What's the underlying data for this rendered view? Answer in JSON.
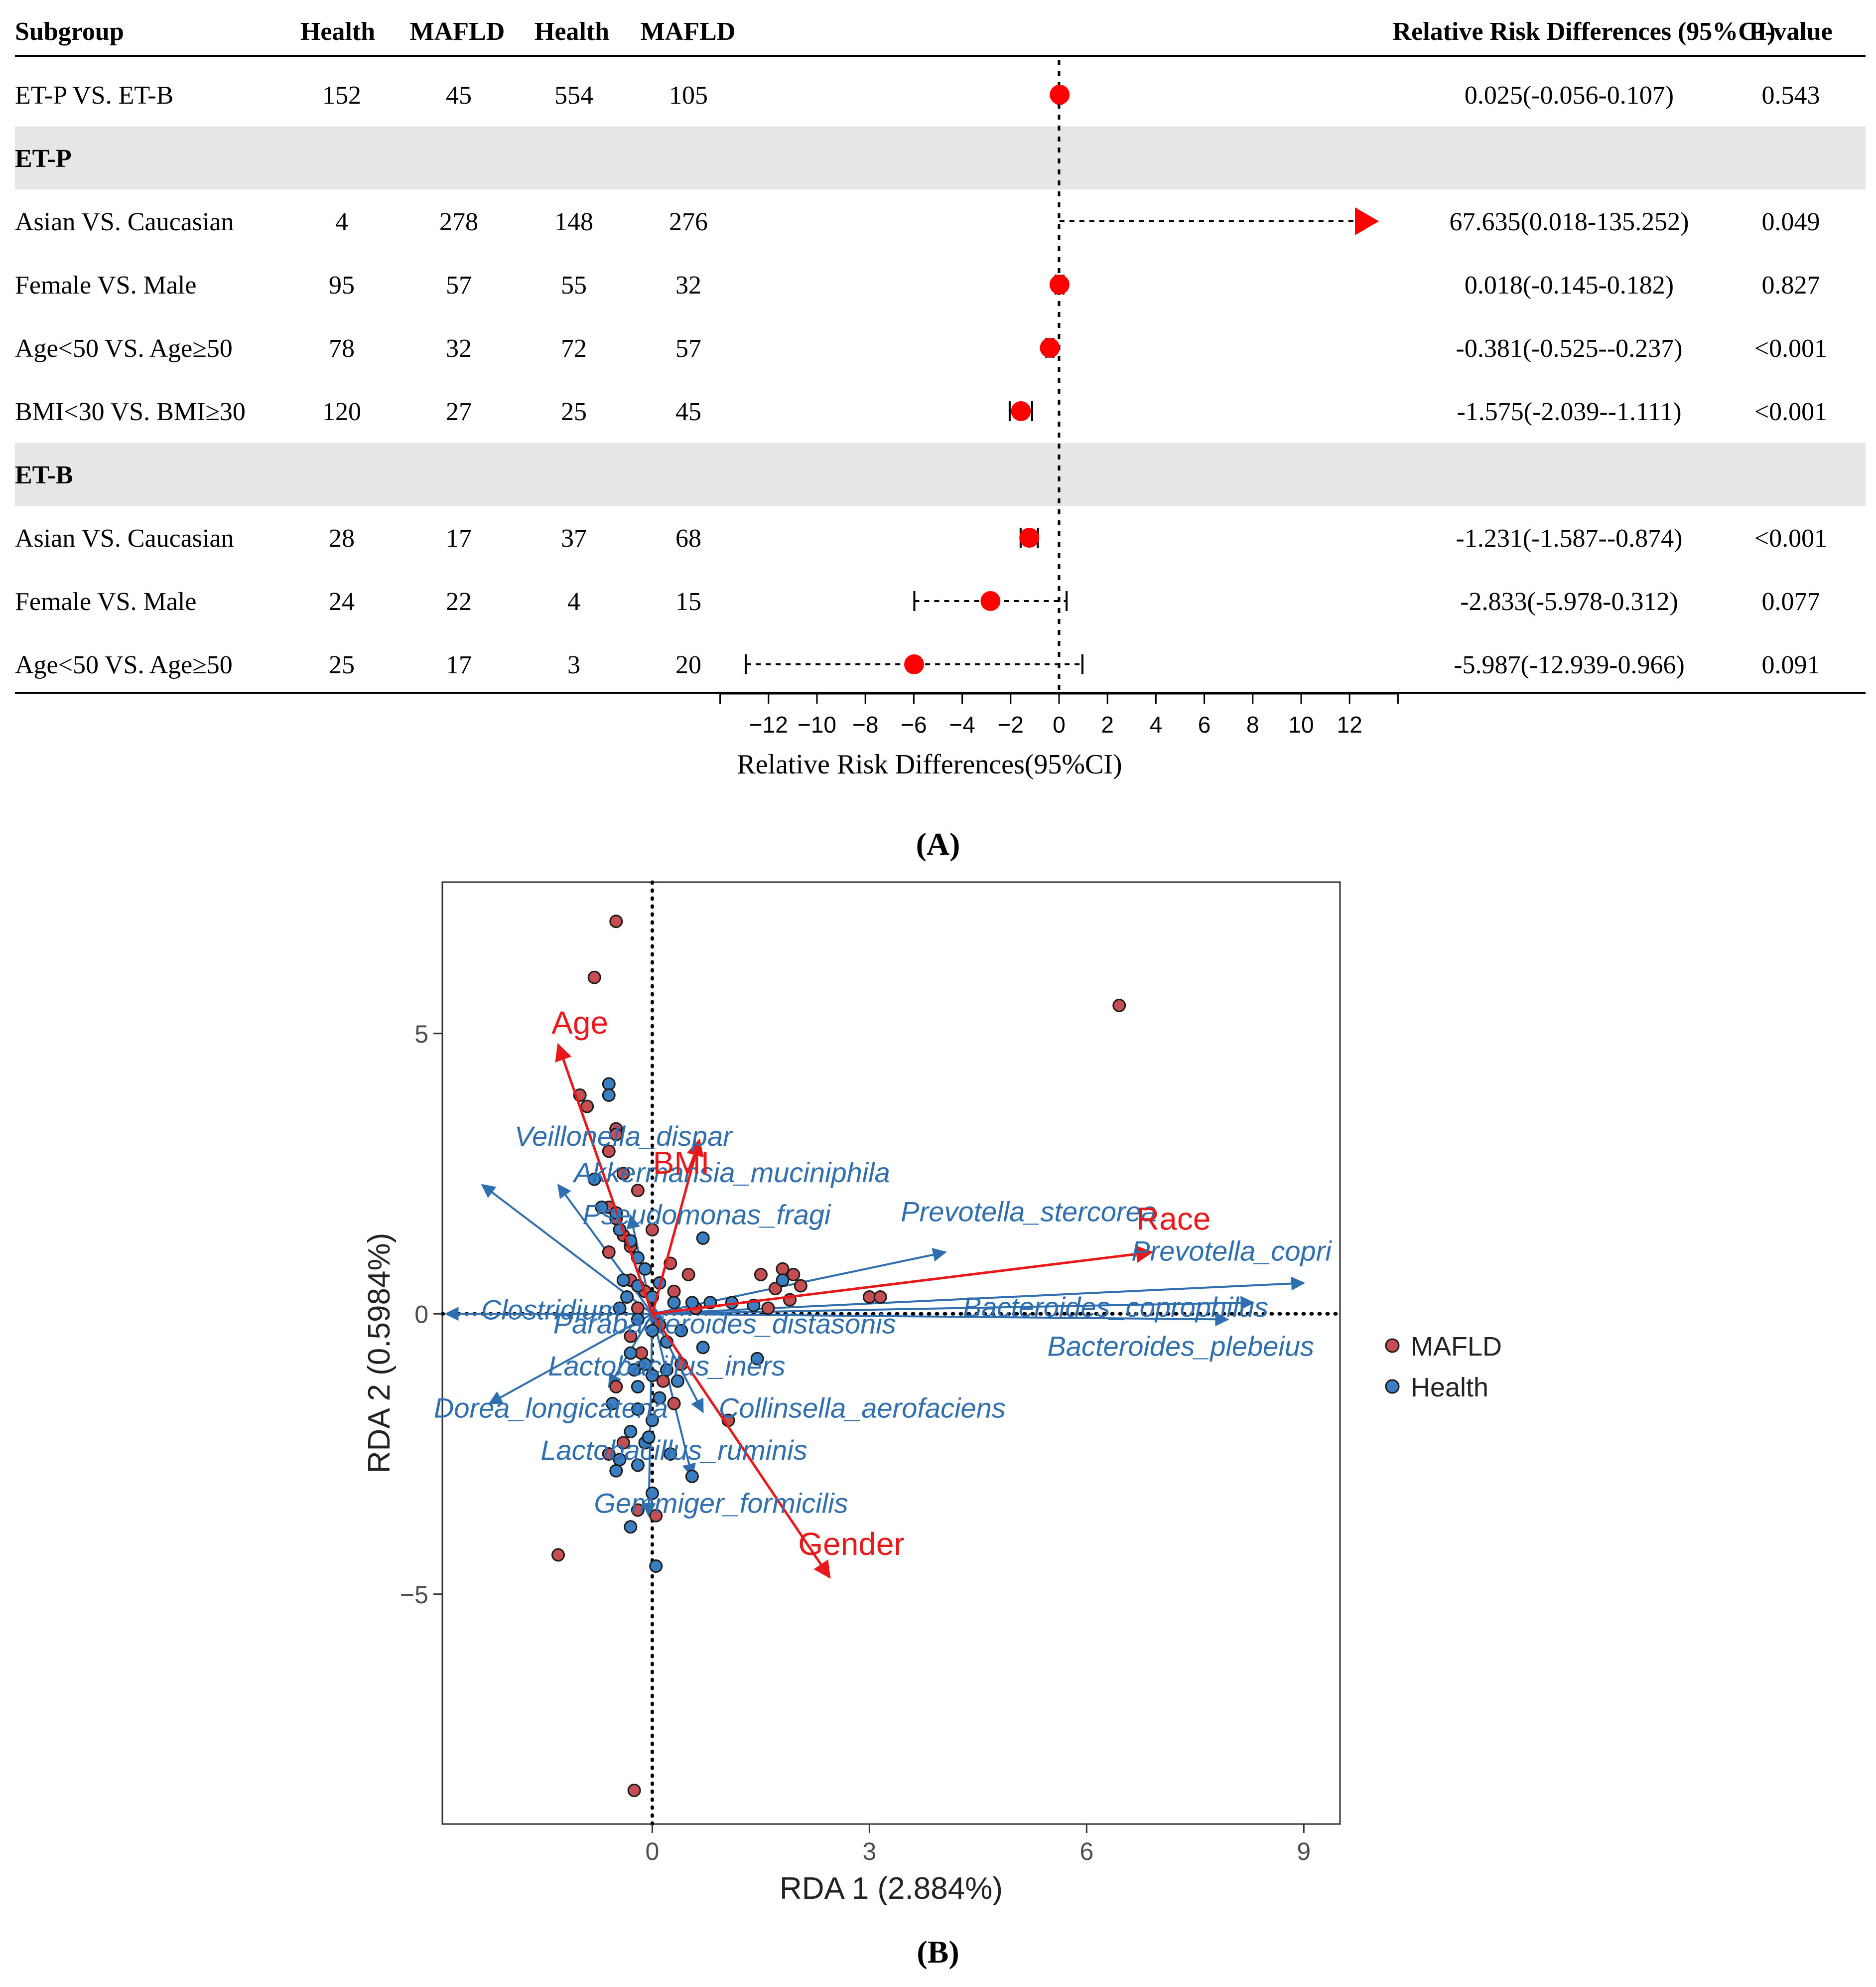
{
  "chart_data": [
    {
      "type": "forest",
      "panel_label": "(A)",
      "columns": [
        "Subgroup",
        "Health",
        "MAFLD",
        "Health",
        "MAFLD",
        "Relative Risk Differences (95%CI)",
        "P-value"
      ],
      "rows": [
        {
          "kind": "data",
          "label": "ET-P VS. ET-B",
          "c1": "152",
          "c2": "45",
          "c3": "554",
          "c4": "105",
          "est": 0.025,
          "lo": -0.056,
          "hi": 0.107,
          "ci_text": "0.025(-0.056-0.107)",
          "p": "0.543"
        },
        {
          "kind": "group",
          "label": "ET-P"
        },
        {
          "kind": "data",
          "label": "Asian VS. Caucasian",
          "c1": "4",
          "c2": "278",
          "c3": "148",
          "c4": "276",
          "est": 67.635,
          "lo": 0.018,
          "hi": 135.252,
          "ci_text": "67.635(0.018-135.252)",
          "p": "0.049",
          "offscale": true
        },
        {
          "kind": "data",
          "label": "Female VS. Male",
          "c1": "95",
          "c2": "57",
          "c3": "55",
          "c4": "32",
          "est": 0.018,
          "lo": -0.145,
          "hi": 0.182,
          "ci_text": "0.018(-0.145-0.182)",
          "p": "0.827"
        },
        {
          "kind": "data",
          "label": "Age<50 VS. Age≥50",
          "c1": "78",
          "c2": "32",
          "c3": "72",
          "c4": "57",
          "est": -0.381,
          "lo": -0.525,
          "hi": -0.237,
          "ci_text": "-0.381(-0.525--0.237)",
          "p": "<0.001"
        },
        {
          "kind": "data",
          "label": "BMI<30 VS. BMI≥30",
          "c1": "120",
          "c2": "27",
          "c3": "25",
          "c4": "45",
          "est": -1.575,
          "lo": -2.039,
          "hi": -1.111,
          "ci_text": "-1.575(-2.039--1.111)",
          "p": "<0.001"
        },
        {
          "kind": "group",
          "label": "ET-B"
        },
        {
          "kind": "data",
          "label": "Asian VS. Caucasian",
          "c1": "28",
          "c2": "17",
          "c3": "37",
          "c4": "68",
          "est": -1.231,
          "lo": -1.587,
          "hi": -0.874,
          "ci_text": "-1.231(-1.587--0.874)",
          "p": "<0.001"
        },
        {
          "kind": "data",
          "label": "Female VS. Male",
          "c1": "24",
          "c2": "22",
          "c3": "4",
          "c4": "15",
          "est": -2.833,
          "lo": -5.978,
          "hi": 0.312,
          "ci_text": "-2.833(-5.978-0.312)",
          "p": "0.077"
        },
        {
          "kind": "data",
          "label": "Age<50 VS. Age≥50",
          "c1": "25",
          "c2": "17",
          "c3": "3",
          "c4": "20",
          "est": -5.987,
          "lo": -12.939,
          "hi": 0.966,
          "ci_text": "-5.987(-12.939-0.966)",
          "p": "0.091"
        }
      ],
      "xlim": [
        -14,
        14
      ],
      "xticks": [
        -12,
        -10,
        -8,
        -6,
        -4,
        -2,
        0,
        2,
        4,
        6,
        8,
        10,
        12
      ],
      "xticklabels": [
        "−12",
        "−10",
        "−8",
        "−6",
        "−4",
        "−2",
        "0",
        "2",
        "4",
        "6",
        "8",
        "10",
        "12"
      ],
      "xlabel": "Relative Risk Differences(95%CI)",
      "colors": {
        "point": "#ff0000",
        "line": "#000000",
        "band": "#e6e6e6"
      }
    },
    {
      "type": "scatter",
      "subtype": "rda_biplot",
      "panel_label": "(B)",
      "xlabel": "RDA 1 (2.884%)",
      "ylabel": "RDA 2 (0.5984%)",
      "xlim": [
        -2.9,
        9.5
      ],
      "ylim": [
        -9.1,
        7.7
      ],
      "xticks": [
        0,
        3,
        6,
        9
      ],
      "xticklabels": [
        "0",
        "3",
        "6",
        "9"
      ],
      "yticks": [
        5,
        0,
        -5
      ],
      "yticklabels": [
        "5",
        "0",
        "−5"
      ],
      "legend": {
        "position": "right",
        "entries": [
          {
            "name": "MAFLD",
            "color": "#c44e52"
          },
          {
            "name": "Health",
            "color": "#3a7fc1"
          }
        ]
      },
      "env_arrows": [
        {
          "name": "Age",
          "x": -1.3,
          "y": 4.8,
          "lx": -1.0,
          "ly": 5.0
        },
        {
          "name": "BMI",
          "x": 0.65,
          "y": 3.1,
          "lx": 0.4,
          "ly": 2.5
        },
        {
          "name": "Race",
          "x": 6.9,
          "y": 1.1,
          "lx": 7.2,
          "ly": 1.5
        },
        {
          "name": "Gender",
          "x": 2.45,
          "y": -4.7,
          "lx": 2.75,
          "ly": -4.3
        }
      ],
      "species_arrows": [
        {
          "name": "Veillonella_dispar",
          "x": -2.35,
          "y": 2.3,
          "lx": -0.4,
          "ly": 3.0
        },
        {
          "name": "Akkermansia_muciniphila",
          "x": -1.3,
          "y": 2.3,
          "lx": 1.1,
          "ly": 2.35
        },
        {
          "name": "Pseudomonas_fragi",
          "x": -0.3,
          "y": 1.75,
          "lx": 0.75,
          "ly": 1.6
        },
        {
          "name": "Prevotella_stercorea",
          "x": 4.05,
          "y": 1.1,
          "lx": 5.2,
          "ly": 1.65
        },
        {
          "name": "Prevotella_copri",
          "x": 9.0,
          "y": 0.55,
          "lx": 8.0,
          "ly": 0.95
        },
        {
          "name": "Bacteroides_coprophilus",
          "x": 8.3,
          "y": 0.2,
          "lx": 6.4,
          "ly": -0.05
        },
        {
          "name": "Bacteroides_plebeius",
          "x": 7.95,
          "y": -0.1,
          "lx": 7.3,
          "ly": -0.75
        },
        {
          "name": "Clostridium",
          "x": -2.85,
          "y": 0.0,
          "lx": -1.4,
          "ly": -0.1
        },
        {
          "name": "Parabacteroides_distasonis",
          "x": 0.15,
          "y": -0.1,
          "lx": 1.0,
          "ly": -0.35
        },
        {
          "name": "Lactobacillus_iners",
          "x": -0.6,
          "y": -1.3,
          "lx": 0.2,
          "ly": -1.1
        },
        {
          "name": "Dorea_longicatena",
          "x": -2.25,
          "y": -1.6,
          "lx": -1.4,
          "ly": -1.85
        },
        {
          "name": "Collinsella_aerofaciens",
          "x": 0.7,
          "y": -1.75,
          "lx": 2.9,
          "ly": -1.85
        },
        {
          "name": "Lactobacillus_ruminis",
          "x": 0.55,
          "y": -2.9,
          "lx": 0.3,
          "ly": -2.6
        },
        {
          "name": "Gemmiger_formicilis",
          "x": -0.05,
          "y": -3.6,
          "lx": 0.95,
          "ly": -3.55
        }
      ],
      "points_mafld": [
        [
          -0.5,
          7.0
        ],
        [
          -0.8,
          6.0
        ],
        [
          6.45,
          5.5
        ],
        [
          -1.0,
          3.9
        ],
        [
          -0.9,
          3.7
        ],
        [
          -0.5,
          3.3
        ],
        [
          -0.5,
          3.2
        ],
        [
          -0.6,
          2.9
        ],
        [
          -0.4,
          2.5
        ],
        [
          -0.2,
          2.2
        ],
        [
          -0.6,
          1.9
        ],
        [
          -0.5,
          1.7
        ],
        [
          0.0,
          1.5
        ],
        [
          -0.4,
          1.4
        ],
        [
          -0.3,
          1.2
        ],
        [
          0.5,
          0.7
        ],
        [
          1.5,
          0.7
        ],
        [
          1.8,
          0.8
        ],
        [
          1.95,
          0.7
        ],
        [
          2.05,
          0.5
        ],
        [
          1.7,
          0.45
        ],
        [
          1.9,
          0.25
        ],
        [
          3.0,
          0.3
        ],
        [
          3.15,
          0.3
        ],
        [
          -0.3,
          0.6
        ],
        [
          -0.1,
          0.4
        ],
        [
          0.3,
          0.4
        ],
        [
          -0.2,
          0.1
        ],
        [
          0.1,
          -0.2
        ],
        [
          -0.3,
          -0.4
        ],
        [
          0.15,
          -1.2
        ],
        [
          1.05,
          -1.9
        ],
        [
          -0.4,
          -2.3
        ],
        [
          -0.6,
          -2.5
        ],
        [
          -0.2,
          -3.5
        ],
        [
          -1.3,
          -4.3
        ],
        [
          0.05,
          -3.6
        ],
        [
          -0.25,
          -8.5
        ],
        [
          -0.6,
          1.1
        ],
        [
          0.25,
          0.9
        ],
        [
          0.6,
          0.1
        ],
        [
          1.6,
          0.1
        ],
        [
          -0.15,
          -0.7
        ],
        [
          0.4,
          -0.9
        ],
        [
          -0.5,
          -1.3
        ],
        [
          0.3,
          -1.6
        ]
      ],
      "points_health": [
        [
          -0.6,
          4.1
        ],
        [
          -0.6,
          3.9
        ],
        [
          -0.8,
          2.4
        ],
        [
          -0.7,
          1.9
        ],
        [
          -0.5,
          1.8
        ],
        [
          -0.45,
          1.5
        ],
        [
          -0.3,
          1.3
        ],
        [
          -0.2,
          1.0
        ],
        [
          0.7,
          1.35
        ],
        [
          1.8,
          0.6
        ],
        [
          -0.1,
          0.8
        ],
        [
          -0.4,
          0.6
        ],
        [
          -0.2,
          0.5
        ],
        [
          0.0,
          0.3
        ],
        [
          0.3,
          0.2
        ],
        [
          0.55,
          0.2
        ],
        [
          0.8,
          0.2
        ],
        [
          1.1,
          0.2
        ],
        [
          1.4,
          0.15
        ],
        [
          -0.45,
          0.1
        ],
        [
          -0.2,
          -0.1
        ],
        [
          0.0,
          -0.3
        ],
        [
          0.2,
          -0.5
        ],
        [
          -0.3,
          -0.7
        ],
        [
          -0.1,
          -0.9
        ],
        [
          0.2,
          -1.0
        ],
        [
          0.35,
          -1.2
        ],
        [
          -0.2,
          -1.3
        ],
        [
          0.1,
          -1.5
        ],
        [
          -0.2,
          -1.7
        ],
        [
          0.0,
          -1.9
        ],
        [
          -0.3,
          -2.1
        ],
        [
          -0.1,
          -2.3
        ],
        [
          -0.45,
          -2.6
        ],
        [
          -0.2,
          -2.7
        ],
        [
          0.25,
          -2.5
        ],
        [
          -0.5,
          -2.8
        ],
        [
          0.0,
          -3.2
        ],
        [
          -0.3,
          -3.8
        ],
        [
          0.05,
          -4.5
        ],
        [
          1.45,
          -0.8
        ],
        [
          0.7,
          -0.6
        ],
        [
          -0.55,
          -1.6
        ],
        [
          0.55,
          -2.9
        ],
        [
          0.4,
          -0.3
        ],
        [
          -0.05,
          -2.2
        ],
        [
          -0.35,
          0.3
        ],
        [
          0.1,
          0.55
        ],
        [
          0.0,
          -1.1
        ],
        [
          -0.25,
          -1.0
        ]
      ]
    }
  ]
}
